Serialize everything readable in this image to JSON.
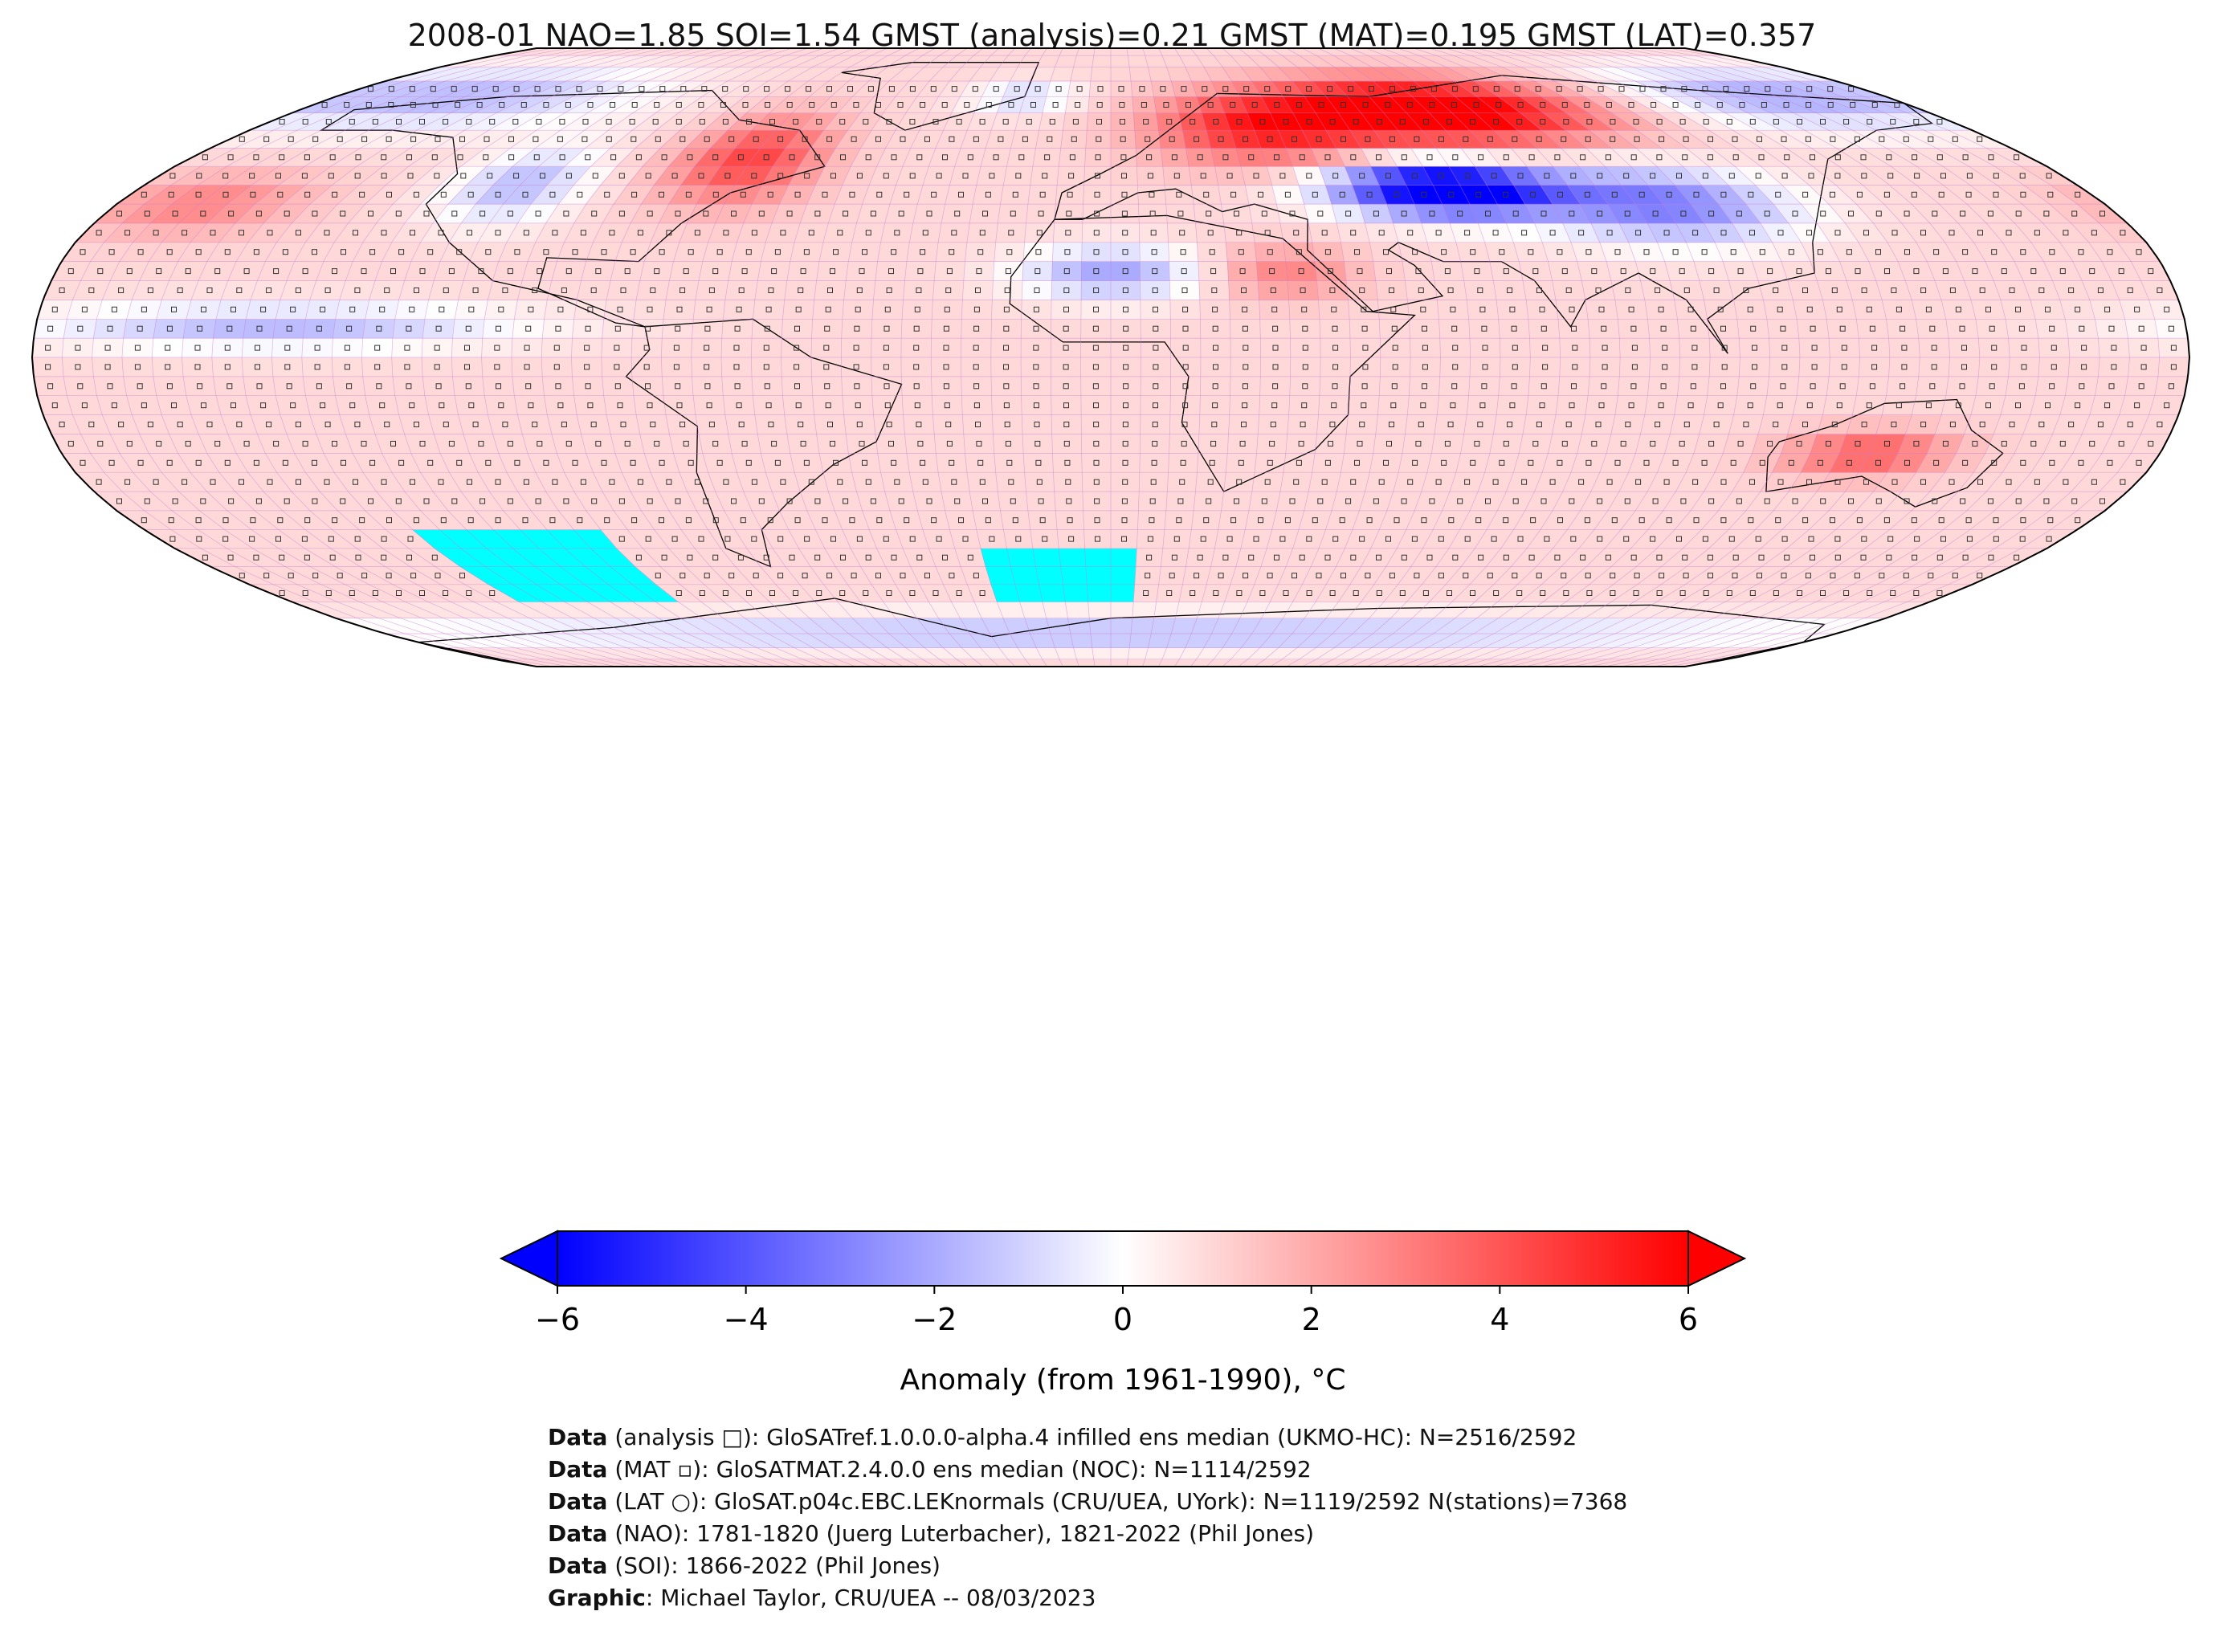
{
  "title": "2008-01 NAO=1.85 SOI=1.54 GMST (analysis)=0.21 GMST (MAT)=0.195 GMST (LAT)=0.357",
  "colorbar": {
    "label": "Anomaly (from 1961-1990), °C",
    "ticks": [
      "−6",
      "−4",
      "−2",
      "0",
      "2",
      "4",
      "6"
    ],
    "range": [
      -6,
      6
    ],
    "colors": {
      "min": "#0000ff",
      "mid": "#ffffff",
      "max": "#ff0000",
      "missing": "#00ffff"
    }
  },
  "map": {
    "projection": "Robinson",
    "grid_resolution_deg": 5,
    "gridline_color": "#c77bd1",
    "anomaly_regions": [
      {
        "name": "Siberia / Northern Europe",
        "anomaly": 6
      },
      {
        "name": "Central Asia",
        "anomaly": -6
      },
      {
        "name": "Eastern North America",
        "anomaly": 4
      },
      {
        "name": "Greenland Sea",
        "anomaly": -2
      },
      {
        "name": "Sahara",
        "anomaly": -2.5
      },
      {
        "name": "Central Australia",
        "anomaly": 3
      },
      {
        "name": "Antarctic coast",
        "anomaly": -2
      }
    ],
    "missing_regions": [
      "South Pacific",
      "South Atlantic"
    ]
  },
  "credits": [
    {
      "label": "Data",
      "text": " (analysis □): GloSATref.1.0.0.0-alpha.4 infilled ens median (UKMO-HC): N=2516/2592"
    },
    {
      "label": "Data",
      "text": " (MAT ▫): GloSATMAT.2.4.0.0 ens median (NOC): N=1114/2592"
    },
    {
      "label": "Data",
      "text": " (LAT ○): GloSAT.p04c.EBC.LEKnormals (CRU/UEA, UYork): N=1119/2592 N(stations)=7368"
    },
    {
      "label": "Data",
      "text": " (NAO): 1781-1820 (Juerg Luterbacher), 1821-2022 (Phil Jones)"
    },
    {
      "label": "Data",
      "text": " (SOI): 1866-2022 (Phil Jones)"
    },
    {
      "label": "Graphic",
      "text": ": Michael Taylor, CRU/UEA -- 08/03/2023"
    }
  ]
}
